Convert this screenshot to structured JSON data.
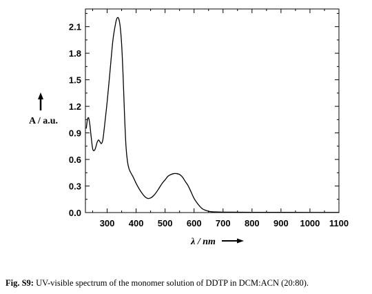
{
  "chart_data": {
    "type": "line",
    "xlabel": "λ / nm",
    "ylabel": "A / a.u.",
    "xlim": [
      225,
      1100
    ],
    "ylim": [
      0.0,
      2.3
    ],
    "xticks": [
      300,
      400,
      500,
      600,
      700,
      800,
      900,
      1000,
      1100
    ],
    "yticks": [
      0.0,
      0.3,
      0.6,
      0.9,
      1.2,
      1.5,
      1.8,
      2.1
    ],
    "xtick_labels": [
      "300",
      "400",
      "500",
      "600",
      "700",
      "800",
      "900",
      "1000",
      "1100"
    ],
    "ytick_labels": [
      "0.0",
      "0.3",
      "0.6",
      "0.9",
      "1.2",
      "1.5",
      "1.8",
      "2.1"
    ],
    "grid": false,
    "series": [
      {
        "x": [
          228,
          232,
          236,
          240,
          245,
          250,
          255,
          260,
          265,
          270,
          275,
          280,
          285,
          290,
          300,
          310,
          320,
          330,
          335,
          340,
          345,
          350,
          355,
          360,
          365,
          370,
          375,
          380,
          390,
          400,
          410,
          420,
          430,
          440,
          450,
          460,
          470,
          480,
          490,
          500,
          510,
          520,
          530,
          540,
          550,
          560,
          570,
          580,
          590,
          600,
          610,
          620,
          630,
          640,
          650,
          660,
          680,
          700,
          750,
          800,
          900,
          1000,
          1100
        ],
        "y": [
          0.95,
          1.05,
          1.07,
          1.0,
          0.85,
          0.72,
          0.7,
          0.73,
          0.79,
          0.82,
          0.8,
          0.78,
          0.82,
          0.95,
          1.25,
          1.6,
          1.95,
          2.15,
          2.2,
          2.19,
          2.1,
          1.9,
          1.55,
          1.1,
          0.75,
          0.58,
          0.5,
          0.46,
          0.4,
          0.33,
          0.27,
          0.22,
          0.18,
          0.16,
          0.165,
          0.19,
          0.23,
          0.28,
          0.33,
          0.37,
          0.41,
          0.43,
          0.44,
          0.44,
          0.43,
          0.4,
          0.35,
          0.3,
          0.23,
          0.16,
          0.11,
          0.07,
          0.04,
          0.025,
          0.015,
          0.01,
          0.007,
          0.005,
          0.004,
          0.003,
          0.003,
          0.002,
          0.002
        ]
      }
    ]
  },
  "caption": {
    "label": "Fig. S9:",
    "text": " UV-visible spectrum of the monomer solution of DDTP in DCM:ACN (20:80)."
  }
}
